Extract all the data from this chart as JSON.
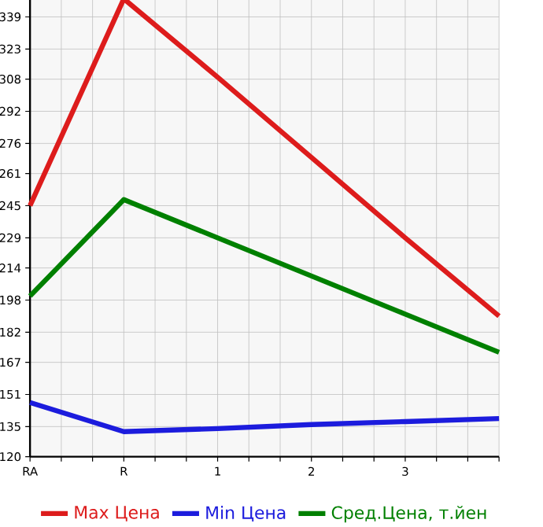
{
  "chart_data": {
    "type": "line",
    "categories": [
      "RA",
      "R",
      "1",
      "2",
      "3",
      null
    ],
    "series": [
      {
        "name": "Max Цена",
        "color": "#dd1c1c",
        "values": [
          245,
          348,
          309,
          269,
          229,
          190
        ]
      },
      {
        "name": "Min Цена",
        "color": "#1c1cdd",
        "values": [
          147,
          132.5,
          134,
          136,
          137.5,
          139
        ]
      },
      {
        "name": "Сред.Цена, т.йен",
        "color": "#008000",
        "values": [
          200,
          248,
          229,
          210,
          191,
          172
        ]
      }
    ],
    "ylim": [
      120,
      355
    ],
    "yticks": [
      120,
      135,
      151,
      167,
      182,
      198,
      214,
      229,
      245,
      261,
      276,
      292,
      308,
      323,
      339
    ],
    "grid": true,
    "legend": "bottom",
    "marker": "none",
    "line_style": "solid"
  }
}
